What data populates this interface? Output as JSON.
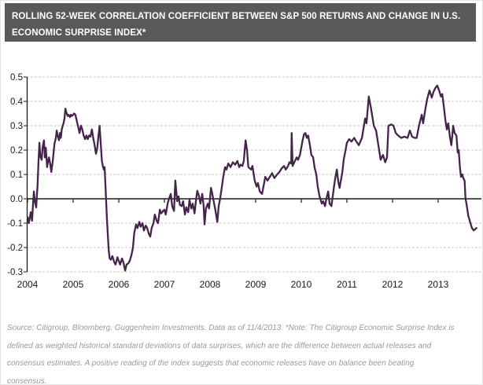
{
  "title_bar": {
    "lines": [
      "ROLLING 52-WEEK CORRELATION COEFFICIENT BETWEEN S&P 500 RETURNS AND CHANGE IN U.S.",
      "ECONOMIC SURPRISE INDEX*"
    ],
    "bg_color": "#58595B",
    "text_color": "#FFFFFF"
  },
  "source_note": {
    "lines": [
      "Source: Citigroup, Bloomberg, Guggenheim Investments. Data as of 11/4/2013. *Note: The Citigroup Economic Surprise Index is",
      "defined as weighted historical standard deviations of data surprises, which are the difference between actual releases and",
      "consensus estimates. A positive reading of the index suggests that economic releases have on balance been beating",
      "consensus."
    ]
  },
  "chart_data": {
    "type": "line",
    "title": "Rolling 52-week correlation coefficient between S&P 500 returns and change in U.S. Economic Surprise Index",
    "x_axis": {
      "ticks": [
        2004,
        2005,
        2006,
        2007,
        2008,
        2009,
        2010,
        2011,
        2012,
        2013
      ],
      "range": [
        2004,
        2013.9
      ],
      "gridlines": false
    },
    "y_axis": {
      "tick_labels": [
        "0.5",
        "0.4",
        "0.3",
        "0.2",
        "0.1",
        "0.0",
        "-0.1",
        "-0.2",
        "-0.3"
      ],
      "range": [
        -0.3,
        0.5
      ],
      "gridlines": "horizontal-dashed"
    },
    "legend": "none",
    "line_color": "#45244B",
    "grid_color": "#C9C9C9",
    "axis_color": "#1A1A1A",
    "series": [
      {
        "name": "Rolling 52-week correlation: S&P 500 returns vs change in U.S. Economic Surprise Index",
        "points": [
          [
            2004.0,
            -0.075
          ],
          [
            2004.03,
            -0.1
          ],
          [
            2004.07,
            -0.055
          ],
          [
            2004.1,
            -0.09
          ],
          [
            2004.12,
            -0.02
          ],
          [
            2004.14,
            0.03
          ],
          [
            2004.16,
            -0.01
          ],
          [
            2004.19,
            -0.035
          ],
          [
            2004.22,
            0.06
          ],
          [
            2004.24,
            0.15
          ],
          [
            2004.26,
            0.23
          ],
          [
            2004.28,
            0.175
          ],
          [
            2004.31,
            0.16
          ],
          [
            2004.33,
            0.21
          ],
          [
            2004.36,
            0.24
          ],
          [
            2004.38,
            0.17
          ],
          [
            2004.4,
            0.21
          ],
          [
            2004.43,
            0.13
          ],
          [
            2004.45,
            0.155
          ],
          [
            2004.47,
            0.17
          ],
          [
            2004.5,
            0.14
          ],
          [
            2004.52,
            0.11
          ],
          [
            2004.55,
            0.15
          ],
          [
            2004.57,
            0.19
          ],
          [
            2004.59,
            0.225
          ],
          [
            2004.62,
            0.25
          ],
          [
            2004.64,
            0.28
          ],
          [
            2004.66,
            0.26
          ],
          [
            2004.69,
            0.24
          ],
          [
            2004.71,
            0.27
          ],
          [
            2004.73,
            0.25
          ],
          [
            2004.75,
            0.285
          ],
          [
            2004.77,
            0.3
          ],
          [
            2004.79,
            0.31
          ],
          [
            2004.81,
            0.33
          ],
          [
            2004.83,
            0.37
          ],
          [
            2004.85,
            0.355
          ],
          [
            2004.88,
            0.34
          ],
          [
            2004.9,
            0.345
          ],
          [
            2004.93,
            0.335
          ],
          [
            2004.95,
            0.345
          ],
          [
            2004.97,
            0.34
          ],
          [
            2005.0,
            0.345
          ],
          [
            2005.02,
            0.35
          ],
          [
            2005.05,
            0.345
          ],
          [
            2005.08,
            0.32
          ],
          [
            2005.11,
            0.295
          ],
          [
            2005.14,
            0.27
          ],
          [
            2005.17,
            0.3
          ],
          [
            2005.2,
            0.285
          ],
          [
            2005.23,
            0.26
          ],
          [
            2005.26,
            0.245
          ],
          [
            2005.29,
            0.26
          ],
          [
            2005.32,
            0.245
          ],
          [
            2005.35,
            0.26
          ],
          [
            2005.38,
            0.255
          ],
          [
            2005.41,
            0.285
          ],
          [
            2005.44,
            0.25
          ],
          [
            2005.47,
            0.22
          ],
          [
            2005.5,
            0.185
          ],
          [
            2005.53,
            0.21
          ],
          [
            2005.55,
            0.25
          ],
          [
            2005.58,
            0.3
          ],
          [
            2005.6,
            0.24
          ],
          [
            2005.63,
            0.155
          ],
          [
            2005.65,
            0.135
          ],
          [
            2005.67,
            0.12
          ],
          [
            2005.69,
            0.13
          ],
          [
            2005.71,
            0.045
          ],
          [
            2005.72,
            0.0
          ],
          [
            2005.74,
            -0.08
          ],
          [
            2005.76,
            -0.15
          ],
          [
            2005.78,
            -0.21
          ],
          [
            2005.8,
            -0.245
          ],
          [
            2005.83,
            -0.25
          ],
          [
            2005.86,
            -0.235
          ],
          [
            2005.9,
            -0.26
          ],
          [
            2005.93,
            -0.27
          ],
          [
            2005.97,
            -0.24
          ],
          [
            2006.0,
            -0.255
          ],
          [
            2006.03,
            -0.27
          ],
          [
            2006.07,
            -0.245
          ],
          [
            2006.1,
            -0.26
          ],
          [
            2006.14,
            -0.295
          ],
          [
            2006.17,
            -0.27
          ],
          [
            2006.21,
            -0.265
          ],
          [
            2006.24,
            -0.255
          ],
          [
            2006.28,
            -0.23
          ],
          [
            2006.31,
            -0.2
          ],
          [
            2006.34,
            -0.14
          ],
          [
            2006.38,
            -0.105
          ],
          [
            2006.41,
            -0.12
          ],
          [
            2006.45,
            -0.095
          ],
          [
            2006.48,
            -0.115
          ],
          [
            2006.52,
            -0.1
          ],
          [
            2006.55,
            -0.13
          ],
          [
            2006.59,
            -0.11
          ],
          [
            2006.62,
            -0.12
          ],
          [
            2006.66,
            -0.145
          ],
          [
            2006.69,
            -0.155
          ],
          [
            2006.72,
            -0.12
          ],
          [
            2006.76,
            -0.1
          ],
          [
            2006.79,
            -0.065
          ],
          [
            2006.83,
            -0.09
          ],
          [
            2006.86,
            -0.1
          ],
          [
            2006.9,
            -0.045
          ],
          [
            2006.93,
            -0.06
          ],
          [
            2006.97,
            -0.05
          ],
          [
            2007.0,
            -0.045
          ],
          [
            2007.03,
            -0.065
          ],
          [
            2007.07,
            -0.02
          ],
          [
            2007.1,
            0.0
          ],
          [
            2007.14,
            0.02
          ],
          [
            2007.17,
            -0.03
          ],
          [
            2007.21,
            -0.05
          ],
          [
            2007.24,
            0.075
          ],
          [
            2007.28,
            -0.01
          ],
          [
            2007.31,
            0.01
          ],
          [
            2007.34,
            -0.025
          ],
          [
            2007.38,
            -0.03
          ],
          [
            2007.41,
            -0.01
          ],
          [
            2007.45,
            -0.065
          ],
          [
            2007.48,
            -0.035
          ],
          [
            2007.52,
            -0.055
          ],
          [
            2007.55,
            -0.005
          ],
          [
            2007.59,
            -0.04
          ],
          [
            2007.62,
            -0.02
          ],
          [
            2007.66,
            -0.06
          ],
          [
            2007.69,
            -0.01
          ],
          [
            2007.72,
            0.033
          ],
          [
            2007.76,
            0.01
          ],
          [
            2007.79,
            -0.02
          ],
          [
            2007.83,
            0.02
          ],
          [
            2007.86,
            -0.03
          ],
          [
            2007.88,
            -0.105
          ],
          [
            2007.91,
            -0.04
          ],
          [
            2007.95,
            -0.02
          ],
          [
            2007.98,
            -0.04
          ],
          [
            2008.02,
            0.045
          ],
          [
            2008.05,
            0.02
          ],
          [
            2008.09,
            -0.02
          ],
          [
            2008.12,
            -0.05
          ],
          [
            2008.16,
            -0.095
          ],
          [
            2008.19,
            -0.03
          ],
          [
            2008.22,
            0.0
          ],
          [
            2008.26,
            0.05
          ],
          [
            2008.29,
            0.09
          ],
          [
            2008.33,
            0.13
          ],
          [
            2008.36,
            0.12
          ],
          [
            2008.4,
            0.145
          ],
          [
            2008.45,
            0.13
          ],
          [
            2008.5,
            0.15
          ],
          [
            2008.55,
            0.14
          ],
          [
            2008.6,
            0.155
          ],
          [
            2008.64,
            0.13
          ],
          [
            2008.67,
            0.14
          ],
          [
            2008.71,
            0.135
          ],
          [
            2008.74,
            0.155
          ],
          [
            2008.78,
            0.24
          ],
          [
            2008.81,
            0.2
          ],
          [
            2008.84,
            0.13
          ],
          [
            2008.9,
            0.12
          ],
          [
            2008.93,
            0.135
          ],
          [
            2008.98,
            0.075
          ],
          [
            2009.02,
            0.05
          ],
          [
            2009.05,
            0.065
          ],
          [
            2009.09,
            0.03
          ],
          [
            2009.14,
            0.02
          ],
          [
            2009.17,
            0.05
          ],
          [
            2009.21,
            0.09
          ],
          [
            2009.26,
            0.075
          ],
          [
            2009.31,
            0.09
          ],
          [
            2009.36,
            0.105
          ],
          [
            2009.41,
            0.085
          ],
          [
            2009.47,
            0.1
          ],
          [
            2009.52,
            0.11
          ],
          [
            2009.57,
            0.125
          ],
          [
            2009.62,
            0.135
          ],
          [
            2009.66,
            0.12
          ],
          [
            2009.71,
            0.135
          ],
          [
            2009.74,
            0.15
          ],
          [
            2009.78,
            0.145
          ],
          [
            2009.79,
            0.27
          ],
          [
            2009.81,
            0.135
          ],
          [
            2009.86,
            0.155
          ],
          [
            2009.9,
            0.17
          ],
          [
            2009.93,
            0.16
          ],
          [
            2009.97,
            0.18
          ],
          [
            2010.0,
            0.21
          ],
          [
            2010.03,
            0.24
          ],
          [
            2010.06,
            0.265
          ],
          [
            2010.09,
            0.27
          ],
          [
            2010.12,
            0.25
          ],
          [
            2010.15,
            0.26
          ],
          [
            2010.19,
            0.22
          ],
          [
            2010.22,
            0.18
          ],
          [
            2010.26,
            0.17
          ],
          [
            2010.29,
            0.13
          ],
          [
            2010.33,
            0.1
          ],
          [
            2010.36,
            0.05
          ],
          [
            2010.4,
            0.01
          ],
          [
            2010.45,
            -0.02
          ],
          [
            2010.48,
            -0.01
          ],
          [
            2010.52,
            -0.03
          ],
          [
            2010.55,
            0.0
          ],
          [
            2010.59,
            0.03
          ],
          [
            2010.62,
            -0.02
          ],
          [
            2010.66,
            -0.03
          ],
          [
            2010.71,
            0.04
          ],
          [
            2010.74,
            0.08
          ],
          [
            2010.78,
            0.12
          ],
          [
            2010.81,
            0.07
          ],
          [
            2010.84,
            0.045
          ],
          [
            2010.9,
            0.11
          ],
          [
            2010.93,
            0.16
          ],
          [
            2010.97,
            0.2
          ],
          [
            2011.0,
            0.23
          ],
          [
            2011.05,
            0.245
          ],
          [
            2011.1,
            0.235
          ],
          [
            2011.16,
            0.25
          ],
          [
            2011.19,
            0.24
          ],
          [
            2011.26,
            0.22
          ],
          [
            2011.33,
            0.25
          ],
          [
            2011.4,
            0.33
          ],
          [
            2011.43,
            0.31
          ],
          [
            2011.48,
            0.42
          ],
          [
            2011.53,
            0.37
          ],
          [
            2011.59,
            0.3
          ],
          [
            2011.64,
            0.28
          ],
          [
            2011.69,
            0.22
          ],
          [
            2011.74,
            0.16
          ],
          [
            2011.79,
            0.18
          ],
          [
            2011.84,
            0.15
          ],
          [
            2011.88,
            0.17
          ],
          [
            2011.91,
            0.3
          ],
          [
            2011.97,
            0.305
          ],
          [
            2012.02,
            0.3
          ],
          [
            2012.07,
            0.27
          ],
          [
            2012.12,
            0.26
          ],
          [
            2012.19,
            0.25
          ],
          [
            2012.26,
            0.255
          ],
          [
            2012.33,
            0.25
          ],
          [
            2012.38,
            0.28
          ],
          [
            2012.43,
            0.255
          ],
          [
            2012.48,
            0.25
          ],
          [
            2012.53,
            0.25
          ],
          [
            2012.58,
            0.3
          ],
          [
            2012.64,
            0.345
          ],
          [
            2012.67,
            0.31
          ],
          [
            2012.72,
            0.37
          ],
          [
            2012.76,
            0.41
          ],
          [
            2012.81,
            0.445
          ],
          [
            2012.86,
            0.415
          ],
          [
            2012.9,
            0.44
          ],
          [
            2012.94,
            0.455
          ],
          [
            2012.98,
            0.465
          ],
          [
            2013.02,
            0.445
          ],
          [
            2013.06,
            0.42
          ],
          [
            2013.09,
            0.43
          ],
          [
            2013.13,
            0.37
          ],
          [
            2013.16,
            0.32
          ],
          [
            2013.19,
            0.285
          ],
          [
            2013.22,
            0.31
          ],
          [
            2013.26,
            0.25
          ],
          [
            2013.29,
            0.22
          ],
          [
            2013.33,
            0.3
          ],
          [
            2013.36,
            0.27
          ],
          [
            2013.4,
            0.26
          ],
          [
            2013.43,
            0.19
          ],
          [
            2013.45,
            0.2
          ],
          [
            2013.48,
            0.125
          ],
          [
            2013.5,
            0.09
          ],
          [
            2013.53,
            0.1
          ],
          [
            2013.55,
            0.085
          ],
          [
            2013.58,
            0.075
          ],
          [
            2013.6,
            0.0
          ],
          [
            2013.62,
            -0.02
          ],
          [
            2013.66,
            -0.07
          ],
          [
            2013.7,
            -0.095
          ],
          [
            2013.74,
            -0.12
          ],
          [
            2013.78,
            -0.13
          ],
          [
            2013.81,
            -0.125
          ],
          [
            2013.84,
            -0.12
          ]
        ]
      }
    ]
  }
}
